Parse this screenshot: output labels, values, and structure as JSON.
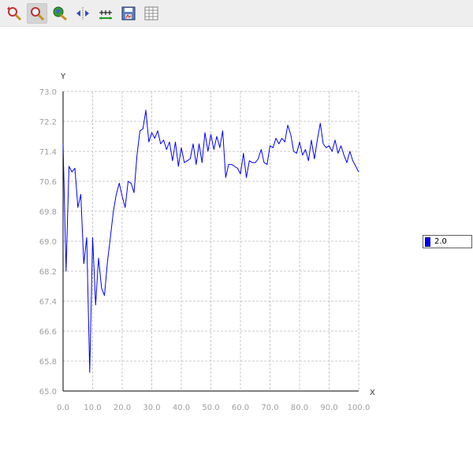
{
  "toolbar": {
    "buttons": [
      {
        "name": "zoom-xy-icon"
      },
      {
        "name": "zoom-icon"
      },
      {
        "name": "zoom-out-icon"
      },
      {
        "name": "auto-range-icon"
      },
      {
        "name": "axis-range-icon"
      },
      {
        "name": "save-icon"
      },
      {
        "name": "table-icon"
      }
    ]
  },
  "colors": {
    "series": "#0000ff",
    "grid": "#c8c8c8",
    "axis": "#000000",
    "tick": "#a0a0a0"
  },
  "chart_data": {
    "type": "line",
    "xlabel": "X",
    "ylabel": "Y",
    "xlim": [
      0,
      100
    ],
    "ylim": [
      65,
      73
    ],
    "grid": true,
    "legend_position": "right",
    "x_ticks": [
      "0.0",
      "10.0",
      "20.0",
      "30.0",
      "40.0",
      "50.0",
      "60.0",
      "70.0",
      "80.0",
      "90.0",
      "100.0"
    ],
    "y_ticks": [
      "65.0",
      "65.8",
      "66.6",
      "67.4",
      "68.2",
      "69.0",
      "69.8",
      "70.6",
      "71.4",
      "72.2",
      "73.0"
    ],
    "series": [
      {
        "name": "2.0",
        "color": "#0000ff",
        "x": [
          0,
          1,
          2,
          3,
          4,
          5,
          6,
          7,
          8,
          9,
          10,
          11,
          12,
          13,
          14,
          15,
          16,
          17,
          18,
          19,
          20,
          21,
          22,
          23,
          24,
          25,
          26,
          27,
          28,
          29,
          30,
          31,
          32,
          33,
          34,
          35,
          36,
          37,
          38,
          39,
          40,
          41,
          42,
          43,
          44,
          45,
          46,
          47,
          48,
          49,
          50,
          51,
          52,
          53,
          54,
          55,
          56,
          57,
          58,
          59,
          60,
          61,
          62,
          63,
          64,
          65,
          66,
          67,
          68,
          69,
          70,
          71,
          72,
          73,
          74,
          75,
          76,
          77,
          78,
          79,
          80,
          81,
          82,
          83,
          84,
          85,
          86,
          87,
          88,
          89,
          90,
          91,
          92,
          93,
          94,
          95,
          96,
          97,
          98,
          99,
          100
        ],
        "values": [
          71.6,
          68.2,
          71.0,
          70.85,
          70.95,
          69.9,
          70.25,
          68.4,
          69.1,
          65.5,
          69.1,
          67.3,
          68.55,
          67.75,
          67.55,
          68.45,
          69.1,
          69.8,
          70.25,
          70.55,
          70.2,
          69.9,
          70.6,
          70.55,
          70.3,
          71.3,
          71.95,
          72.0,
          72.5,
          71.65,
          71.9,
          71.75,
          71.95,
          71.6,
          71.7,
          71.45,
          71.65,
          71.15,
          71.65,
          71.0,
          71.5,
          71.1,
          71.15,
          71.2,
          71.6,
          71.05,
          71.6,
          71.1,
          71.9,
          71.4,
          71.85,
          71.45,
          71.8,
          71.5,
          71.95,
          70.7,
          71.05,
          71.05,
          71.0,
          70.95,
          70.8,
          71.35,
          70.7,
          71.15,
          71.1,
          71.1,
          71.2,
          71.45,
          71.1,
          71.05,
          71.55,
          71.5,
          71.75,
          71.6,
          71.75,
          71.65,
          72.1,
          71.85,
          71.4,
          71.35,
          71.65,
          71.3,
          71.45,
          71.15,
          71.7,
          71.2,
          71.7,
          72.15,
          71.6,
          71.5,
          71.55,
          71.4,
          71.7,
          71.35,
          71.55,
          71.3,
          71.1,
          71.4,
          71.15,
          71.0,
          70.85
        ]
      }
    ]
  }
}
